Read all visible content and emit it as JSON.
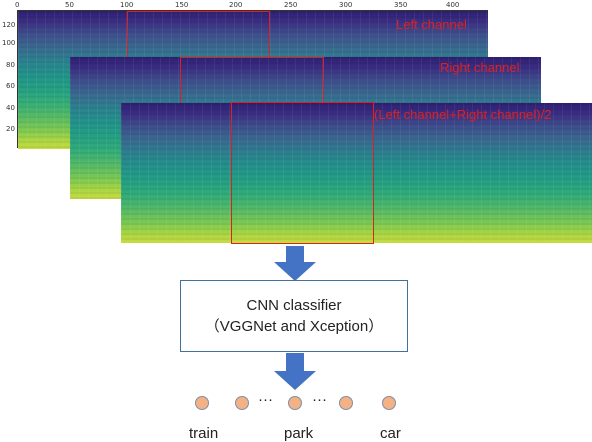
{
  "spectrogram": {
    "x_ticks": [
      "0",
      "50",
      "100",
      "150",
      "200",
      "250",
      "300",
      "350",
      "400"
    ],
    "y_ticks": [
      "120",
      "100",
      "80",
      "60",
      "40",
      "20"
    ]
  },
  "channels": [
    {
      "label": "Left channel"
    },
    {
      "label": "Right channel"
    },
    {
      "label": "(Left channel+Right channel)/2"
    }
  ],
  "classifier": {
    "line1": "CNN classifier",
    "line2": "（VGGNet and Xception）"
  },
  "outputs": {
    "ellipsis": "···",
    "labels": [
      "train",
      "park",
      "car"
    ]
  },
  "colors": {
    "roi": "#e02020",
    "arrow": "#4472c4",
    "dot": "#f4b183",
    "box_border": "#41719c"
  }
}
